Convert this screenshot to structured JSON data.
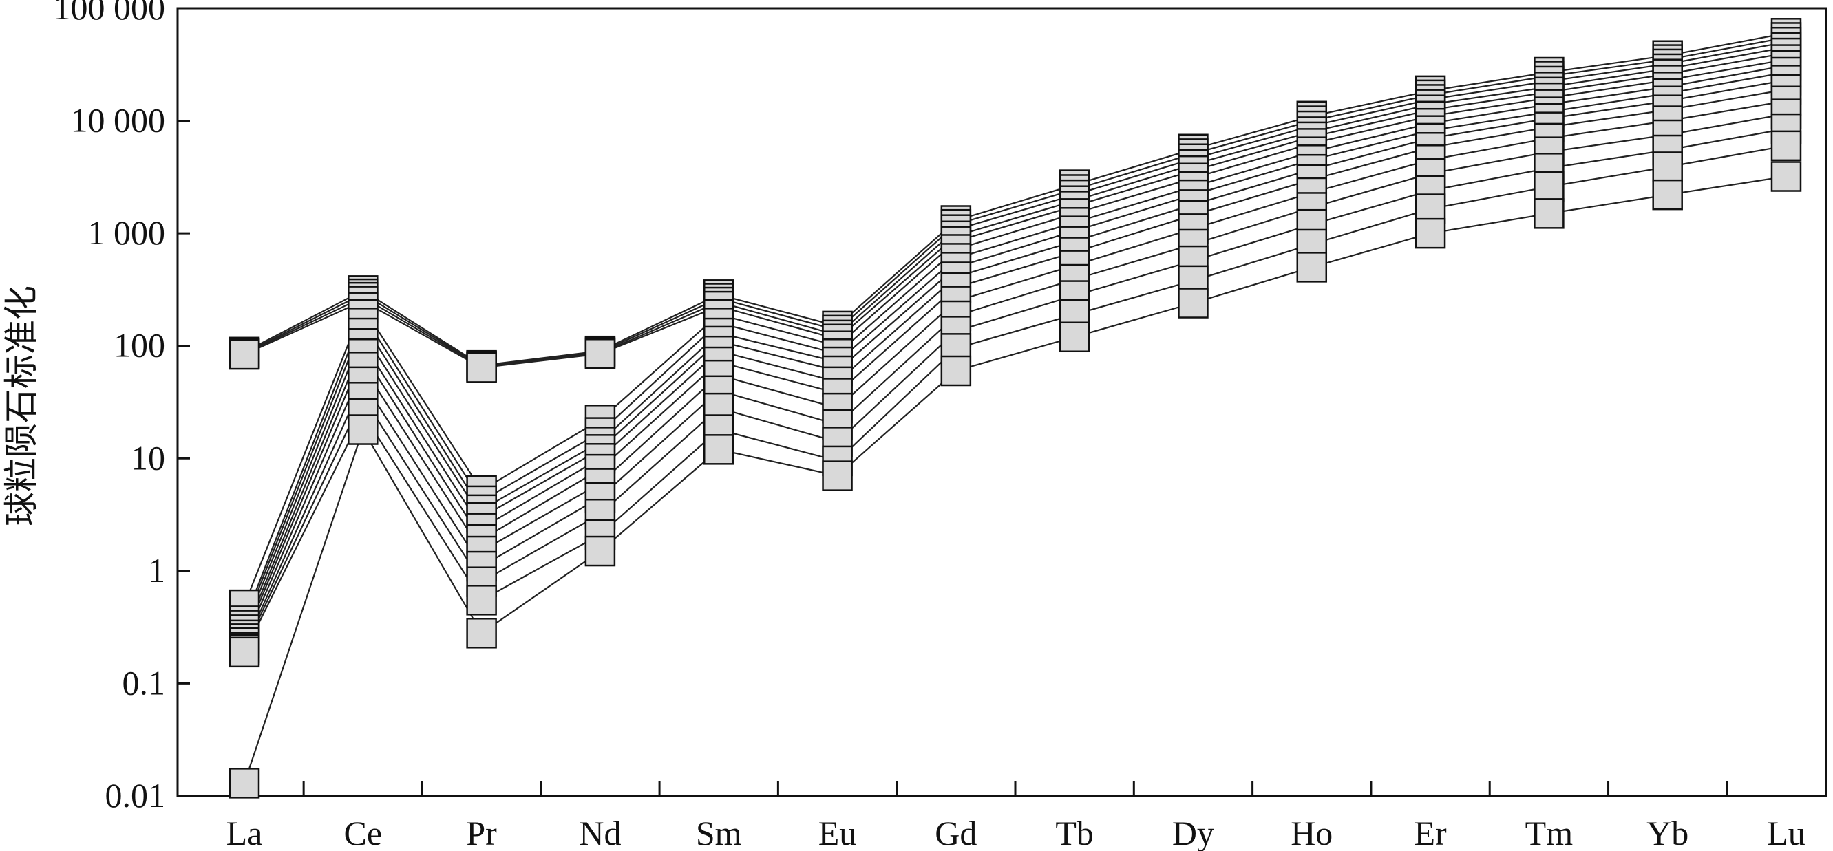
{
  "chart_data": {
    "type": "line",
    "title": "",
    "xlabel": "",
    "ylabel": "球粒陨石标准化",
    "yscale": "log",
    "ylim": [
      0.01,
      100000
    ],
    "yticks": [
      0.01,
      0.1,
      1,
      10,
      100,
      1000,
      10000,
      100000
    ],
    "ytick_labels": [
      "0.01",
      "0.1",
      "1",
      "10",
      "100",
      "1 000",
      "10 000",
      "100 000"
    ],
    "categories": [
      "La",
      "Ce",
      "Pr",
      "Nd",
      "Sm",
      "Eu",
      "Gd",
      "Tb",
      "Dy",
      "Ho",
      "Er",
      "Tm",
      "Yb",
      "Lu"
    ],
    "grid": false,
    "legend": "none",
    "marker": "square",
    "marker_color": "#d9d9d9",
    "series": [
      {
        "values": [
          88,
          310,
          67,
          90,
          285,
          150,
          1300,
          2700,
          5600,
          11000,
          18500,
          27000,
          38000,
          60000
        ]
      },
      {
        "values": [
          86,
          290,
          66,
          88,
          265,
          138,
          1200,
          2450,
          5100,
          10000,
          17000,
          25000,
          35000,
          55000
        ]
      },
      {
        "values": [
          85,
          270,
          65,
          86,
          245,
          125,
          1080,
          2200,
          4600,
          9000,
          15500,
          22500,
          32000,
          50000
        ]
      },
      {
        "values": [
          84,
          250,
          64,
          85,
          225,
          115,
          950,
          1950,
          4100,
          8000,
          14000,
          20000,
          29000,
          45000
        ]
      },
      {
        "values": [
          0.5,
          220,
          5.2,
          22,
          190,
          100,
          850,
          1750,
          3600,
          7200,
          12500,
          18000,
          26000,
          40000
        ]
      },
      {
        "values": [
          0.36,
          190,
          4.2,
          17,
          160,
          85,
          720,
          1500,
          3100,
          6300,
          11000,
          16000,
          23000,
          35000
        ]
      },
      {
        "values": [
          0.33,
          160,
          3.5,
          14,
          130,
          72,
          600,
          1250,
          2600,
          5300,
          9500,
          14000,
          20000,
          31000
        ]
      },
      {
        "values": [
          0.3,
          130,
          3.0,
          12,
          110,
          60,
          500,
          1050,
          2200,
          4500,
          8200,
          12000,
          17500,
          27000
        ]
      },
      {
        "values": [
          0.27,
          105,
          2.4,
          10,
          90,
          48,
          410,
          850,
          1800,
          3700,
          7000,
          10500,
          15000,
          23000
        ]
      },
      {
        "values": [
          0.25,
          85,
          1.9,
          8,
          72,
          38,
          330,
          680,
          1450,
          3000,
          5800,
          8800,
          12500,
          19000
        ]
      },
      {
        "values": [
          0.23,
          65,
          1.5,
          6,
          55,
          28,
          250,
          520,
          1100,
          2300,
          4500,
          7000,
          10000,
          15000
        ]
      },
      {
        "values": [
          0.21,
          48,
          1.1,
          4.5,
          40,
          20,
          185,
          390,
          800,
          1700,
          3400,
          5300,
          7500,
          11500
        ]
      },
      {
        "values": [
          0.2,
          35,
          0.8,
          3.2,
          28,
          14,
          135,
          280,
          570,
          1200,
          2400,
          3800,
          5500,
          8500
        ]
      },
      {
        "values": [
          0.19,
          25,
          0.55,
          2.1,
          18,
          9.5,
          95,
          190,
          380,
          800,
          1650,
          2600,
          3900,
          6000
        ]
      },
      {
        "values": [
          0.013,
          18,
          0.28,
          1.5,
          12,
          7,
          60,
          120,
          240,
          500,
          1000,
          1500,
          2200,
          3200
        ]
      }
    ]
  }
}
